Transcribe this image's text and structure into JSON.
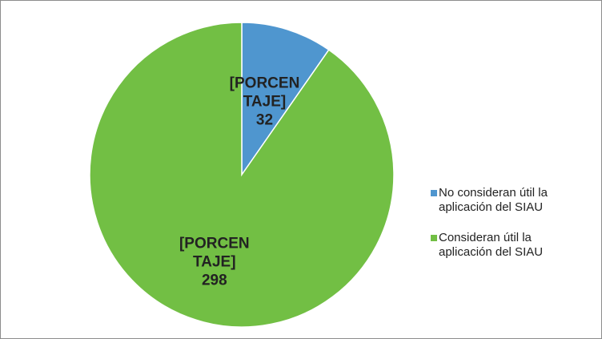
{
  "chart_data": {
    "type": "pie",
    "categories": [
      "No consideran útil la aplicación del SIAU",
      "Consideran útil la aplicación del SIAU"
    ],
    "values": [
      32,
      298
    ],
    "value_labels": [
      "[PORCENTAJE]\n32",
      "[PORCENTAJE]\n298"
    ],
    "colors": [
      "#4f96cf",
      "#72bf44"
    ],
    "legend": "right"
  }
}
